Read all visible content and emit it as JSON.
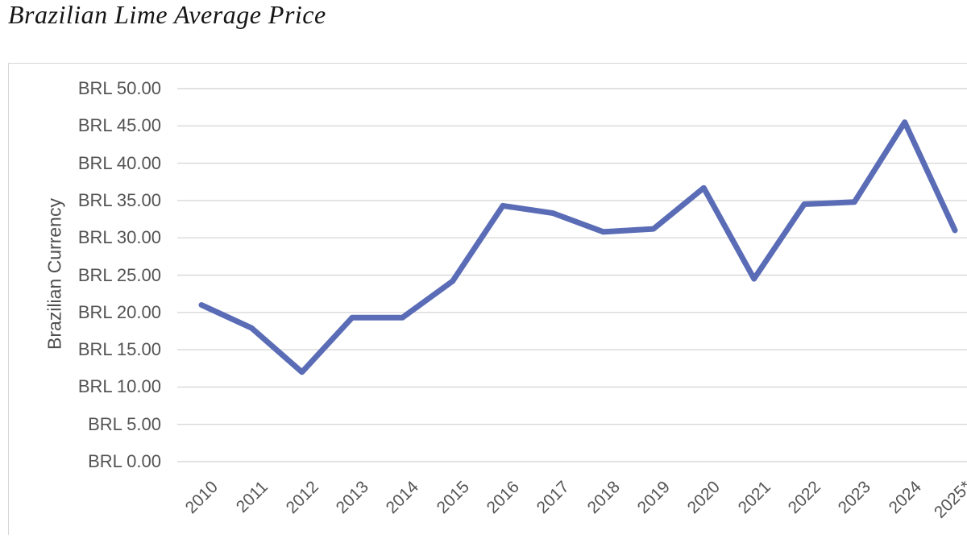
{
  "page_title": "Brazilian Lime Average Price",
  "chart_data": {
    "type": "line",
    "title": "Brazilian Lime Average Price",
    "categories": [
      "2010",
      "2011",
      "2012",
      "2013",
      "2014",
      "2015",
      "2016",
      "2017",
      "2018",
      "2019",
      "2020",
      "2021",
      "2022",
      "2023",
      "2024",
      "2025*"
    ],
    "series": [
      {
        "name": "Brazilian Lime Average Price",
        "values": [
          21.0,
          17.9,
          12.0,
          19.3,
          19.3,
          24.2,
          34.3,
          33.3,
          30.8,
          31.2,
          36.7,
          24.5,
          34.5,
          34.8,
          45.5,
          31.0
        ]
      }
    ],
    "xlabel": "",
    "ylabel": "Brazilian Currency",
    "ylim": [
      0,
      50
    ],
    "ytick_step": 5,
    "y_tick_labels": [
      "BRL 50.00",
      "BRL 45.00",
      "BRL 40.00",
      "BRL 35.00",
      "BRL 30.00",
      "BRL 25.00",
      "BRL 20.00",
      "BRL 15.00",
      "BRL 10.00",
      "BRL 5.00",
      "BRL 0.00"
    ],
    "grid": true,
    "legend": "none",
    "colors": {
      "line": "#5a6cb6",
      "gridline": "#d9d9d9",
      "axis_text": "#545454",
      "frame_border": "#d6d6d6"
    }
  }
}
